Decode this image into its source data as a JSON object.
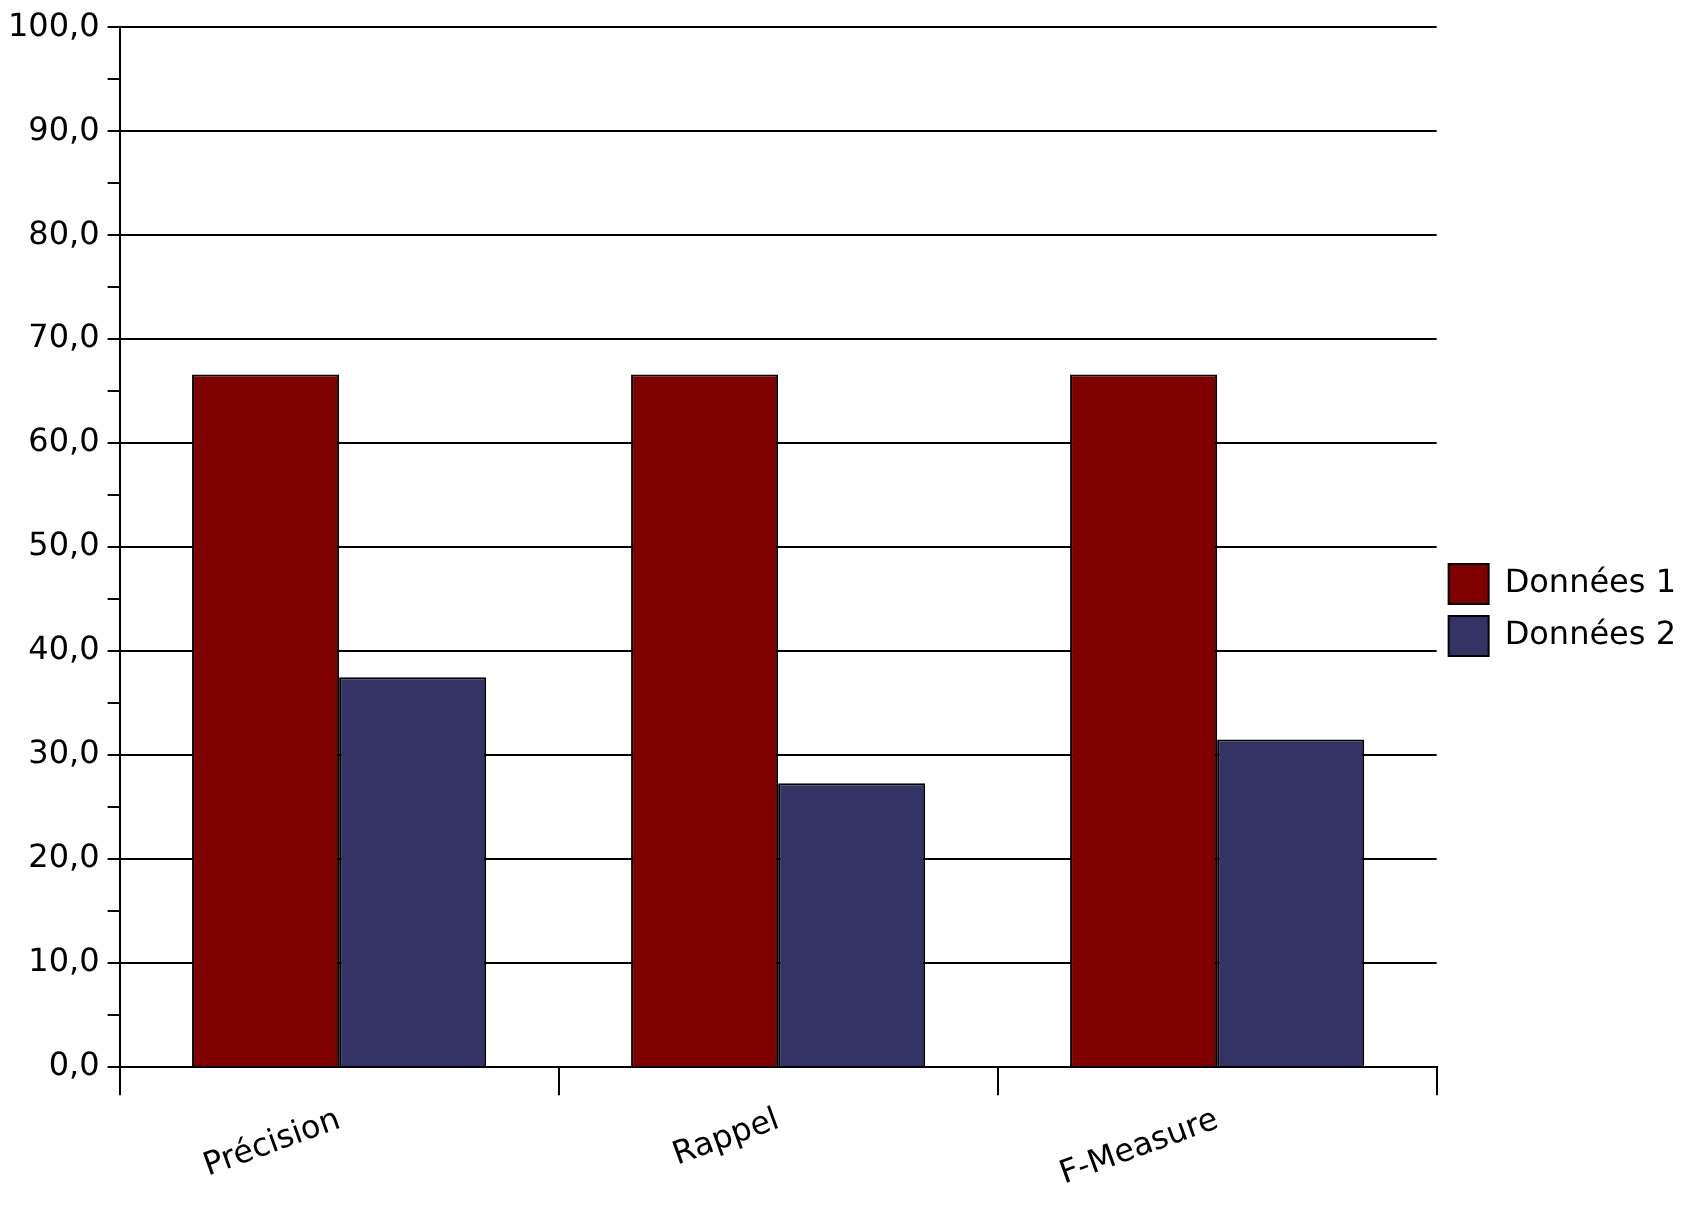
{
  "chart_data": {
    "type": "bar",
    "categories": [
      "Précision",
      "Rappel",
      "F-Measure"
    ],
    "series": [
      {
        "name": "Données 1",
        "color": "#800000",
        "values": [
          66.6,
          66.6,
          66.6
        ]
      },
      {
        "name": "Données 2",
        "color": "#333366",
        "values": [
          37.5,
          27.3,
          31.5
        ]
      }
    ],
    "ylim": [
      0,
      100
    ],
    "yticks": [
      {
        "value": 0,
        "label": "0,0"
      },
      {
        "value": 5,
        "label": null
      },
      {
        "value": 10,
        "label": "10,0"
      },
      {
        "value": 15,
        "label": null
      },
      {
        "value": 20,
        "label": "20,0"
      },
      {
        "value": 25,
        "label": null
      },
      {
        "value": 30,
        "label": "30,0"
      },
      {
        "value": 35,
        "label": null
      },
      {
        "value": 40,
        "label": "40,0"
      },
      {
        "value": 45,
        "label": null
      },
      {
        "value": 50,
        "label": "50,0"
      },
      {
        "value": 55,
        "label": null
      },
      {
        "value": 60,
        "label": "60,0"
      },
      {
        "value": 65,
        "label": null
      },
      {
        "value": 70,
        "label": "70,0"
      },
      {
        "value": 75,
        "label": null
      },
      {
        "value": 80,
        "label": "80,0"
      },
      {
        "value": 85,
        "label": null
      },
      {
        "value": 90,
        "label": "90,0"
      },
      {
        "value": 95,
        "label": null
      },
      {
        "value": 100,
        "label": "100,0"
      }
    ],
    "grid": "y",
    "legend": "right"
  }
}
